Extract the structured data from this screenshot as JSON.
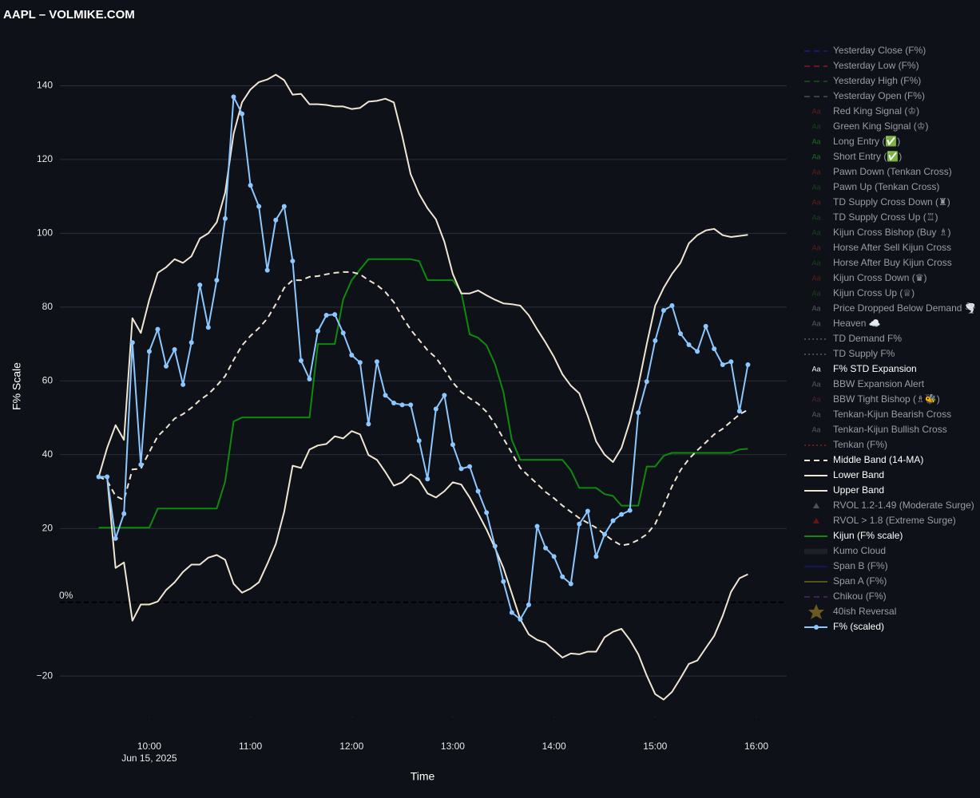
{
  "chart_data": {
    "type": "line",
    "title": "AAPL – VOLMIKE.COM",
    "x_label": "Time",
    "y_label": "F% Scale",
    "x": [
      "2025-06-15 09:30",
      "2025-06-15 09:35",
      "2025-06-15 09:40",
      "2025-06-15 09:45",
      "2025-06-15 09:50",
      "2025-06-15 09:55",
      "2025-06-15 10:00",
      "2025-06-15 10:05",
      "2025-06-15 10:10",
      "2025-06-15 10:15",
      "2025-06-15 10:20",
      "2025-06-15 10:25",
      "2025-06-15 10:30",
      "2025-06-15 10:35",
      "2025-06-15 10:40",
      "2025-06-15 10:45",
      "2025-06-15 10:50",
      "2025-06-15 10:55",
      "2025-06-15 11:00",
      "2025-06-15 11:05",
      "2025-06-15 11:10",
      "2025-06-15 11:15",
      "2025-06-15 11:20",
      "2025-06-15 11:25",
      "2025-06-15 11:30",
      "2025-06-15 11:35",
      "2025-06-15 11:40",
      "2025-06-15 11:45",
      "2025-06-15 11:50",
      "2025-06-15 11:55",
      "2025-06-15 12:00",
      "2025-06-15 12:05",
      "2025-06-15 12:10",
      "2025-06-15 12:15",
      "2025-06-15 12:20",
      "2025-06-15 12:25",
      "2025-06-15 12:30",
      "2025-06-15 12:35",
      "2025-06-15 12:40",
      "2025-06-15 12:45",
      "2025-06-15 12:50",
      "2025-06-15 12:55",
      "2025-06-15 13:00",
      "2025-06-15 13:05",
      "2025-06-15 13:10",
      "2025-06-15 13:15",
      "2025-06-15 13:20",
      "2025-06-15 13:25",
      "2025-06-15 13:30",
      "2025-06-15 13:35",
      "2025-06-15 13:40",
      "2025-06-15 13:45",
      "2025-06-15 13:50",
      "2025-06-15 13:55",
      "2025-06-15 14:00",
      "2025-06-15 14:05",
      "2025-06-15 14:10",
      "2025-06-15 14:15",
      "2025-06-15 14:20",
      "2025-06-15 14:25",
      "2025-06-15 14:30",
      "2025-06-15 14:35",
      "2025-06-15 14:40",
      "2025-06-15 14:45",
      "2025-06-15 14:50",
      "2025-06-15 14:55",
      "2025-06-15 15:00",
      "2025-06-15 15:05",
      "2025-06-15 15:10",
      "2025-06-15 15:15",
      "2025-06-15 15:20",
      "2025-06-15 15:25",
      "2025-06-15 15:30",
      "2025-06-15 15:35",
      "2025-06-15 15:40",
      "2025-06-15 15:45",
      "2025-06-15 15:50",
      "2025-06-15 15:55"
    ],
    "xlim": [
      "2025-06-15 09:07",
      "2025-06-15 16:18"
    ],
    "xticks": [
      {
        "value": "2025-06-15 10:00",
        "label": "10:00"
      },
      {
        "value": "2025-06-15 11:00",
        "label": "11:00"
      },
      {
        "value": "2025-06-15 12:00",
        "label": "12:00"
      },
      {
        "value": "2025-06-15 13:00",
        "label": "13:00"
      },
      {
        "value": "2025-06-15 14:00",
        "label": "14:00"
      },
      {
        "value": "2025-06-15 15:00",
        "label": "15:00"
      },
      {
        "value": "2025-06-15 16:00",
        "label": "16:00"
      }
    ],
    "x_date_label": "Jun 15, 2025",
    "ylim": [
      -31,
      152
    ],
    "yticks": [
      {
        "value": -20,
        "label": "−20"
      },
      20,
      40,
      60,
      80,
      100,
      120,
      140
    ],
    "grid": true,
    "zeroline": true,
    "annotations": [
      {
        "text": "0%",
        "y": 0
      }
    ],
    "series": [
      {
        "name": "Yesterday Close (F%)",
        "style": "dash",
        "color": "#2020c0",
        "visible": false
      },
      {
        "name": "Yesterday Low (F%)",
        "style": "dash",
        "color": "#b02020",
        "visible": false
      },
      {
        "name": "Yesterday High (F%)",
        "style": "dash",
        "color": "#1d6b1d",
        "visible": false
      },
      {
        "name": "Yesterday Open (F%)",
        "style": "dash",
        "color": "#666666",
        "visible": false
      },
      {
        "name": "Red King Signal (♔)",
        "style": "text",
        "symbol": "Aa",
        "color": "#b02020",
        "visible": false
      },
      {
        "name": "Green King Signal (♔)",
        "style": "text",
        "symbol": "Aa",
        "color": "#1d6b1d",
        "visible": false
      },
      {
        "name": "Long Entry (✅)",
        "style": "text",
        "symbol": "Aa",
        "color": "#22bb22",
        "visible": false
      },
      {
        "name": "Short Entry (✅)",
        "style": "text",
        "symbol": "Aa",
        "color": "#22bb22",
        "visible": false
      },
      {
        "name": "Pawn Down (Tenkan Cross)",
        "style": "text",
        "symbol": "Aa",
        "color": "#b02020",
        "visible": false
      },
      {
        "name": "Pawn Up (Tenkan Cross)",
        "style": "text",
        "symbol": "Aa",
        "color": "#1d6b1d",
        "visible": false
      },
      {
        "name": "TD Supply Cross Down (♜)",
        "style": "text",
        "symbol": "Aa",
        "color": "#b02020",
        "visible": false
      },
      {
        "name": "TD Supply Cross Up (♖)",
        "style": "text",
        "symbol": "Aa",
        "color": "#1d6b1d",
        "visible": false
      },
      {
        "name": "Kijun Cross Bishop (Buy ♗)",
        "style": "text",
        "symbol": "Aa",
        "color": "#1d6b1d",
        "visible": false
      },
      {
        "name": "Horse After Sell Kijun Cross",
        "style": "text",
        "symbol": "Aa",
        "color": "#b02020",
        "visible": false
      },
      {
        "name": "Horse After Buy Kijun Cross",
        "style": "text",
        "symbol": "Aa",
        "color": "#1d6b1d",
        "visible": false
      },
      {
        "name": "Kijun Cross Down (♛)",
        "style": "text",
        "symbol": "Aa",
        "color": "#b02020",
        "visible": false
      },
      {
        "name": "Kijun Cross Up (♕)",
        "style": "text",
        "symbol": "Aa",
        "color": "#1d6b1d",
        "visible": false
      },
      {
        "name": "Price Dropped Below Demand 🌪️",
        "style": "text",
        "symbol": "Aa",
        "color": "#999999",
        "visible": false
      },
      {
        "name": "Heaven ☁️",
        "style": "text",
        "symbol": "Aa",
        "color": "#999999",
        "visible": false
      },
      {
        "name": "TD Demand F%",
        "style": "dot",
        "color": "#777777",
        "visible": false
      },
      {
        "name": "TD Supply F%",
        "style": "dot",
        "color": "#777777",
        "visible": false
      },
      {
        "name": "F% STD Expansion",
        "style": "text",
        "symbol": "Aa",
        "color": "#ffffff",
        "visible": true
      },
      {
        "name": "BBW Expansion Alert",
        "style": "text",
        "symbol": "Aa",
        "color": "#999999",
        "visible": false
      },
      {
        "name": "BBW Tight Bishop (♗🐝)",
        "style": "text",
        "symbol": "Aa",
        "color": "#8a2a5a",
        "visible": false
      },
      {
        "name": "Tenkan-Kijun Bearish Cross",
        "style": "text",
        "symbol": "Aa",
        "color": "#999999",
        "visible": false
      },
      {
        "name": "Tenkan-Kijun Bullish Cross",
        "style": "text",
        "symbol": "Aa",
        "color": "#999999",
        "visible": false
      },
      {
        "name": "Tenkan (F%)",
        "style": "dot",
        "color": "#c02020",
        "visible": false
      },
      {
        "name": "Middle Band (14-MA)",
        "style": "dash",
        "color": "#f0e6d2",
        "visible": true,
        "values": [
          34,
          33,
          28.8,
          27.7,
          36,
          36.2,
          40.7,
          45,
          47.2,
          49.8,
          51,
          52.7,
          54.8,
          56.4,
          58.7,
          61.3,
          65.7,
          69.6,
          72.2,
          74.3,
          76.9,
          80.8,
          85.2,
          87.3,
          87.3,
          88.2,
          88.4,
          88.9,
          89.3,
          89.5,
          89.5,
          88.9,
          87.3,
          86,
          84.1,
          81.3,
          77.4,
          73.9,
          71.1,
          68.3,
          66.3,
          63.1,
          59.6,
          57,
          55.3,
          53.8,
          51.6,
          48.3,
          44.4,
          40.5,
          36.4,
          34.2,
          32.1,
          29.9,
          28.2,
          26.2,
          24.5,
          22.8,
          21.5,
          20.2,
          18.4,
          16.7,
          15.4,
          15.8,
          16.9,
          18.4,
          21.2,
          26.2,
          31.4,
          35.8,
          38.8,
          41.2,
          43.3,
          45.5,
          47,
          49,
          50.9,
          52.2
        ]
      },
      {
        "name": "Lower Band",
        "style": "solid",
        "color": "#f0e6d2",
        "visible": true,
        "values": [
          34,
          34,
          9.3,
          10.8,
          -5,
          -0.6,
          -0.6,
          0.2,
          3.3,
          5.4,
          8.2,
          10.2,
          10.2,
          12.1,
          12.8,
          11.5,
          5,
          2.6,
          3.7,
          5.4,
          10.4,
          15.8,
          24.5,
          37,
          36.4,
          41.4,
          42.5,
          42.9,
          45,
          44.4,
          46.4,
          45.5,
          39.9,
          38.6,
          35.3,
          31.6,
          32.5,
          34.7,
          33.2,
          29.5,
          28.4,
          30.1,
          32.5,
          31.9,
          28.4,
          24.1,
          19.7,
          14.7,
          9.3,
          2.4,
          -4.6,
          -8.7,
          -10.2,
          -11,
          -13,
          -15,
          -13.9,
          -14.1,
          -13.4,
          -13.4,
          -9.5,
          -8,
          -7.2,
          -10.2,
          -14.1,
          -19.9,
          -24.9,
          -26.4,
          -24.3,
          -20.6,
          -16.7,
          -15.8,
          -12.4,
          -9.1,
          -3.7,
          2.8,
          6.5,
          7.6
        ]
      },
      {
        "name": "Upper Band",
        "style": "solid",
        "color": "#f0e6d2",
        "visible": true,
        "values": [
          34,
          41.8,
          48,
          44,
          77,
          73,
          82,
          89.3,
          90.8,
          93,
          92,
          93.8,
          98.6,
          100,
          103,
          111,
          127,
          135.5,
          139,
          141,
          141.7,
          143,
          141.5,
          137.6,
          137.8,
          135,
          135,
          134.8,
          134.4,
          134.4,
          133.7,
          134,
          135.7,
          135.9,
          136.5,
          135.5,
          126.4,
          116,
          110.7,
          106.8,
          103.8,
          97.7,
          89,
          83.7,
          83.7,
          84.5,
          83.2,
          82,
          81,
          80.8,
          80.4,
          77.8,
          74,
          70.4,
          66.5,
          61.8,
          58.7,
          56.6,
          50.5,
          43.6,
          40,
          38,
          41.8,
          49,
          58.7,
          70,
          80.4,
          85.2,
          89,
          92,
          97.3,
          99.5,
          100.8,
          101.2,
          99.5,
          99,
          99.3,
          99.6
        ]
      },
      {
        "name": "RVOL 1.2-1.49 (Moderate Surge)",
        "style": "triangle",
        "color": "#888888",
        "visible": false
      },
      {
        "name": "RVOL > 1.8 (Extreme Surge)",
        "style": "triangle",
        "color": "#b01818",
        "visible": false
      },
      {
        "name": "Kijun (F% scale)",
        "style": "solid",
        "color": "#0f8a0f",
        "visible": true,
        "values": [
          20.2,
          20.2,
          20.2,
          20.2,
          20.2,
          20.2,
          20.2,
          25.4,
          25.4,
          25.4,
          25.4,
          25.4,
          25.4,
          25.4,
          25.4,
          32.7,
          49,
          50.1,
          50.1,
          50.1,
          50.1,
          50.1,
          50.1,
          50.1,
          50.1,
          50.1,
          70,
          70,
          70,
          82.1,
          87.3,
          90.2,
          93,
          93,
          93,
          93,
          93,
          93,
          92.5,
          87.3,
          87.3,
          87.3,
          87.3,
          84.1,
          72.6,
          71.7,
          69.6,
          64.6,
          57,
          44,
          38.6,
          38.6,
          38.6,
          38.6,
          38.6,
          38.6,
          35.8,
          31,
          31,
          31,
          29.3,
          28.8,
          26.2,
          26.2,
          26.2,
          36.8,
          36.8,
          39.7,
          40.5,
          40.5,
          40.5,
          40.5,
          40.5,
          40.5,
          40.5,
          40.5,
          41.4,
          41.6
        ]
      },
      {
        "name": "Kumo Cloud",
        "style": "thick",
        "color": "#2a2e36",
        "visible": false
      },
      {
        "name": "Span B (F%)",
        "style": "solid",
        "color": "#1a1a8a",
        "visible": false
      },
      {
        "name": "Span A (F%)",
        "style": "solid",
        "color": "#8a8a1a",
        "visible": false
      },
      {
        "name": "Chikou (F%)",
        "style": "dash",
        "color": "#6a2a8a",
        "visible": false
      },
      {
        "name": "40ish Reversal",
        "style": "star",
        "color": "#b8962a",
        "visible": false
      },
      {
        "name": "F% (scaled)",
        "style": "markers",
        "color": "#8cc8ff",
        "visible": true,
        "values": [
          34,
          34,
          17.3,
          24,
          70.4,
          37.3,
          68,
          74,
          64,
          68.5,
          59,
          70.4,
          86,
          74.5,
          87.3,
          104,
          137,
          132.4,
          113,
          107.3,
          90,
          103.6,
          107.3,
          92.5,
          65.5,
          60.5,
          73.5,
          77.8,
          78,
          73,
          67,
          65,
          48.3,
          65.2,
          56.1,
          54,
          53.5,
          53.5,
          43.8,
          33.4,
          52.4,
          56.1,
          42.7,
          36.2,
          36.8,
          30.1,
          24.3,
          15.2,
          5.6,
          -2.8,
          -4.6,
          -0.7,
          20.6,
          14.7,
          12.4,
          6.9,
          5,
          21.2,
          24.7,
          12.4,
          18.4,
          22.1,
          23.8,
          24.9,
          51.4,
          59.8,
          70.9,
          79.1,
          80.4,
          72.8,
          69.8,
          68,
          74.8,
          68.7,
          64.4,
          65.2,
          51.8,
          64.4
        ]
      }
    ]
  }
}
